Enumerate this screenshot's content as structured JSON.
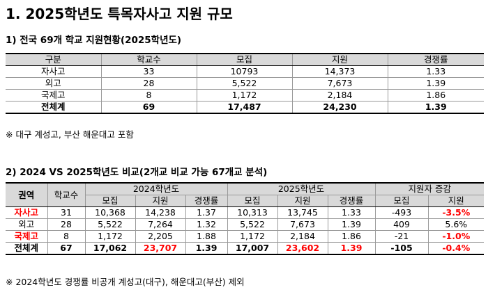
{
  "title": "1. 2025학년도 특목자사고 지원 규모",
  "section1": {
    "heading": "1) 전국 69개 학교 지원현황(2025학년도)",
    "headers": [
      "구분",
      "학교수",
      "모집",
      "지원",
      "경쟁률"
    ],
    "rows": [
      [
        "자사고",
        "33",
        "10793",
        "14,373",
        "1.33"
      ],
      [
        "외고",
        "28",
        "5,522",
        "7,673",
        "1.39"
      ],
      [
        "국제고",
        "8",
        "1,172",
        "2,184",
        "1.86"
      ]
    ],
    "total": [
      "전체계",
      "69",
      "17,487",
      "24,230",
      "1.39"
    ],
    "note": "※ 대구 계성고, 부산 해운대고 포함"
  },
  "section2": {
    "heading": "2) 2024 VS 2025학년도 비교(2개교 비교 가능 67개교 분석)",
    "header_region": "권역",
    "header_schools": "학교수",
    "group_2024": "2024학년도",
    "group_2025": "2025학년도",
    "group_change": "지원자 증감",
    "sub_2024": [
      "모집",
      "지원",
      "경쟁률"
    ],
    "sub_2025": [
      "모집",
      "지원",
      "경쟁률"
    ],
    "sub_change": [
      "모집",
      "지원"
    ],
    "rows": [
      [
        "자사고",
        "31",
        "10,368",
        "14,238",
        "1.37",
        "10,313",
        "13,745",
        "1.33",
        "-493",
        "-3.5%"
      ],
      [
        "외고",
        "28",
        "5,522",
        "7,264",
        "1.32",
        "5,522",
        "7,673",
        "1.39",
        "409",
        "5.6%"
      ],
      [
        "국제고",
        "8",
        "1,172",
        "2,205",
        "1.88",
        "1,172",
        "2,184",
        "1.86",
        "-21",
        "-1.0%"
      ]
    ],
    "total": [
      "전체계",
      "67",
      "17,062",
      "23,707",
      "1.39",
      "17,007",
      "23,602",
      "1.39",
      "-105",
      "-0.4%"
    ],
    "note": "※ 2024학년도 경쟁률 비공개 계성고(대구), 해운대고(부산) 제외",
    "highlight_color": "#ff0000"
  }
}
